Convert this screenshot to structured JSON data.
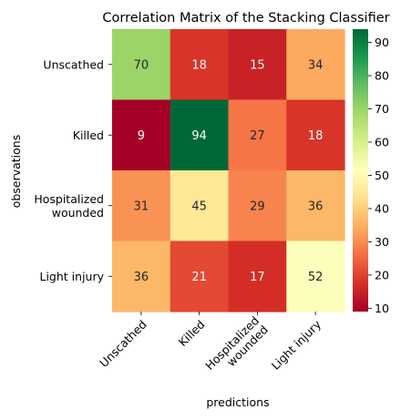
{
  "chart_data": {
    "type": "heatmap",
    "title": "Correlation Matrix of the Stacking Classifier",
    "xlabel": "predictions",
    "ylabel": "observations",
    "rows": [
      "Unscathed",
      "Killed",
      "Hospitalized\nwounded",
      "Light injury"
    ],
    "columns": [
      "Unscathed",
      "Killed",
      "Hospitalized\nwounded",
      "Light injury"
    ],
    "values": [
      [
        70,
        18,
        15,
        34
      ],
      [
        9,
        94,
        27,
        18
      ],
      [
        31,
        45,
        29,
        36
      ],
      [
        36,
        21,
        17,
        52
      ]
    ],
    "colormap": "RdYlGn",
    "colorbar": {
      "min": 9,
      "max": 94,
      "ticks": [
        10,
        20,
        30,
        40,
        50,
        60,
        70,
        80,
        90
      ]
    }
  }
}
